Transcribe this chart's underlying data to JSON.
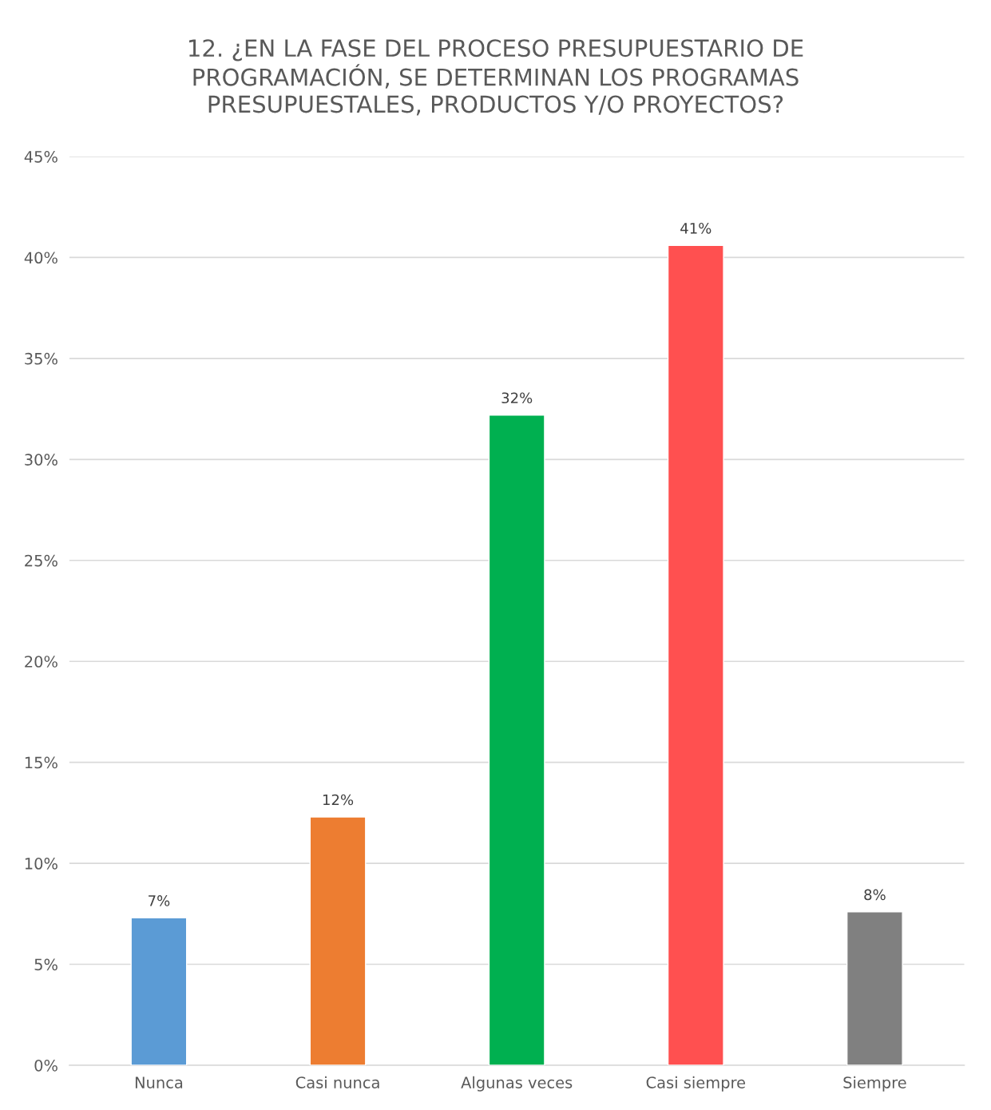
{
  "chart_data": {
    "type": "bar",
    "title": "12. ¿EN LA FASE DEL PROCESO PRESUPUESTARIO DE\nPROGRAMACIÓN, SE DETERMINAN LOS PROGRAMAS\nPRESUPUESTALES, PRODUCTOS Y/O PROYECTOS?",
    "categories": [
      "Nunca",
      "Casi nunca",
      "Algunas veces",
      "Casi siempre",
      "Siempre"
    ],
    "values": [
      7.3,
      12.3,
      32.2,
      40.6,
      7.6
    ],
    "value_labels": [
      "7%",
      "12%",
      "32%",
      "41%",
      "8%"
    ],
    "colors": [
      "#5b9bd5",
      "#ed7d31",
      "#00b050",
      "#ff5050",
      "#808080"
    ],
    "ylim": [
      0,
      45
    ],
    "yticks": [
      {
        "value": 0,
        "label": "0%"
      },
      {
        "value": 5,
        "label": "5%"
      },
      {
        "value": 10,
        "label": "10%"
      },
      {
        "value": 15,
        "label": "15%"
      },
      {
        "value": 20,
        "label": "20%"
      },
      {
        "value": 25,
        "label": "25%"
      },
      {
        "value": 30,
        "label": "30%"
      },
      {
        "value": 35,
        "label": "35%"
      },
      {
        "value": 40,
        "label": "40%"
      },
      {
        "value": 45,
        "label": "45%"
      }
    ],
    "grid": "y",
    "legend": false
  }
}
